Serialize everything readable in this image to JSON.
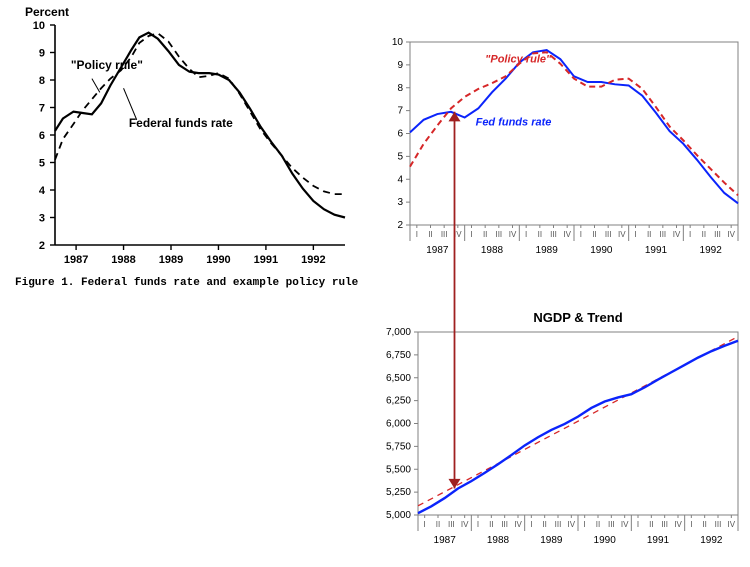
{
  "left_chart": {
    "type": "line",
    "title_top": "Percent",
    "caption": "Figure 1.  Federal funds rate and example policy rule.",
    "caption_fontweight": "bold",
    "caption_fontsize": 11,
    "title_fontsize": 12,
    "x_years": [
      "1987",
      "1988",
      "1989",
      "1990",
      "1991",
      "1992"
    ],
    "ylim": [
      2,
      10
    ],
    "ytick_step": 1,
    "axis_color": "#000000",
    "line_color": "#000000",
    "line_width": 2.2,
    "dash_width": 1.8,
    "background_color": "#ffffff",
    "label_fontsize": 11,
    "annot_policy": "\"Policy rule\"",
    "annot_fed": "Federal funds rate",
    "annot_fontsize": 12,
    "series": {
      "fed_funds": {
        "style": "solid",
        "xy": [
          [
            0.0,
            6.15
          ],
          [
            0.3,
            6.6
          ],
          [
            0.7,
            6.85
          ],
          [
            1.05,
            6.8
          ],
          [
            1.4,
            6.75
          ],
          [
            1.75,
            7.15
          ],
          [
            2.1,
            7.8
          ],
          [
            2.5,
            8.45
          ],
          [
            2.9,
            9.1
          ],
          [
            3.2,
            9.55
          ],
          [
            3.55,
            9.72
          ],
          [
            3.9,
            9.5
          ],
          [
            4.3,
            9.05
          ],
          [
            4.7,
            8.55
          ],
          [
            5.1,
            8.3
          ],
          [
            5.45,
            8.25
          ],
          [
            5.85,
            8.25
          ],
          [
            6.2,
            8.2
          ],
          [
            6.6,
            8.0
          ],
          [
            7.0,
            7.55
          ],
          [
            7.4,
            6.95
          ],
          [
            7.8,
            6.3
          ],
          [
            8.2,
            5.75
          ],
          [
            8.6,
            5.25
          ],
          [
            9.0,
            4.6
          ],
          [
            9.4,
            4.05
          ],
          [
            9.8,
            3.6
          ],
          [
            10.2,
            3.3
          ],
          [
            10.6,
            3.1
          ],
          [
            11.0,
            3.0
          ]
        ]
      },
      "policy_rule": {
        "style": "dashed",
        "xy": [
          [
            0.0,
            5.1
          ],
          [
            0.3,
            5.85
          ],
          [
            0.7,
            6.4
          ],
          [
            1.05,
            6.9
          ],
          [
            1.4,
            7.3
          ],
          [
            1.75,
            7.7
          ],
          [
            2.1,
            8.05
          ],
          [
            2.5,
            8.35
          ],
          [
            2.9,
            8.85
          ],
          [
            3.2,
            9.35
          ],
          [
            3.55,
            9.6
          ],
          [
            3.9,
            9.7
          ],
          [
            4.3,
            9.4
          ],
          [
            4.7,
            8.85
          ],
          [
            5.1,
            8.4
          ],
          [
            5.45,
            8.1
          ],
          [
            5.85,
            8.15
          ],
          [
            6.2,
            8.25
          ],
          [
            6.6,
            8.05
          ],
          [
            7.0,
            7.5
          ],
          [
            7.4,
            6.85
          ],
          [
            7.8,
            6.2
          ],
          [
            8.2,
            5.7
          ],
          [
            8.6,
            5.25
          ],
          [
            9.0,
            4.8
          ],
          [
            9.4,
            4.45
          ],
          [
            9.8,
            4.15
          ],
          [
            10.2,
            3.95
          ],
          [
            10.6,
            3.85
          ],
          [
            11.0,
            3.85
          ]
        ]
      }
    }
  },
  "right_top_chart": {
    "type": "line",
    "ylim": [
      2,
      10
    ],
    "ytick_step": 1,
    "x_years": [
      "1987",
      "1988",
      "1989",
      "1990",
      "1991",
      "1992"
    ],
    "x_quarter_labels": [
      "I",
      "II",
      "III",
      "IV"
    ],
    "border_color": "#808080",
    "grid_color": "#e0e0e0",
    "background_color": "#ffffff",
    "fed_color": "#0b24fb",
    "policy_color": "#d62728",
    "line_width": 2.0,
    "label_fontsize": 10,
    "annot_policy": "\"Policy rule\"",
    "annot_fed": "Fed funds rate",
    "annot_fontsize": 11,
    "annot_fontweight": "bold",
    "series": {
      "fed_funds": {
        "style": "solid",
        "color_key": "fed_color",
        "xy": [
          [
            0.0,
            6.05
          ],
          [
            1.0,
            6.6
          ],
          [
            2.0,
            6.85
          ],
          [
            3.0,
            6.95
          ],
          [
            4.0,
            6.7
          ],
          [
            5.0,
            7.1
          ],
          [
            6.0,
            7.8
          ],
          [
            7.0,
            8.4
          ],
          [
            8.0,
            9.1
          ],
          [
            9.0,
            9.55
          ],
          [
            10.0,
            9.65
          ],
          [
            11.0,
            9.25
          ],
          [
            12.0,
            8.5
          ],
          [
            13.0,
            8.25
          ],
          [
            14.0,
            8.25
          ],
          [
            15.0,
            8.15
          ],
          [
            16.0,
            8.1
          ],
          [
            17.0,
            7.65
          ],
          [
            18.0,
            6.9
          ],
          [
            19.0,
            6.1
          ],
          [
            20.0,
            5.55
          ],
          [
            21.0,
            4.85
          ],
          [
            22.0,
            4.1
          ],
          [
            23.0,
            3.4
          ],
          [
            24.0,
            2.95
          ]
        ]
      },
      "policy_rule": {
        "style": "dashed",
        "color_key": "policy_color",
        "xy": [
          [
            0.0,
            4.55
          ],
          [
            1.0,
            5.55
          ],
          [
            2.0,
            6.35
          ],
          [
            3.0,
            7.1
          ],
          [
            4.0,
            7.6
          ],
          [
            5.0,
            7.95
          ],
          [
            6.0,
            8.2
          ],
          [
            7.0,
            8.5
          ],
          [
            8.0,
            9.05
          ],
          [
            9.0,
            9.5
          ],
          [
            10.0,
            9.55
          ],
          [
            11.0,
            9.05
          ],
          [
            12.0,
            8.4
          ],
          [
            13.0,
            8.05
          ],
          [
            14.0,
            8.05
          ],
          [
            15.0,
            8.35
          ],
          [
            16.0,
            8.4
          ],
          [
            17.0,
            7.95
          ],
          [
            18.0,
            7.15
          ],
          [
            19.0,
            6.3
          ],
          [
            20.0,
            5.7
          ],
          [
            21.0,
            5.05
          ],
          [
            22.0,
            4.45
          ],
          [
            23.0,
            3.85
          ],
          [
            24.0,
            3.3
          ]
        ]
      }
    }
  },
  "right_bottom_chart": {
    "type": "line",
    "title": "NGDP & Trend",
    "title_fontsize": 13,
    "title_fontweight": "bold",
    "ylim": [
      5000,
      7000
    ],
    "ytick_step": 250,
    "x_years": [
      "1987",
      "1988",
      "1989",
      "1990",
      "1991",
      "1992"
    ],
    "x_quarter_labels": [
      "I",
      "II",
      "III",
      "IV"
    ],
    "border_color": "#808080",
    "grid_color": "#e0e0e0",
    "background_color": "#ffffff",
    "ngdp_color": "#0b24fb",
    "trend_color": "#d62728",
    "line_width_ngdp": 2.4,
    "line_width_trend": 1.3,
    "label_fontsize": 10,
    "series": {
      "ngdp": {
        "style": "solid",
        "color_key": "ngdp_color",
        "xy": [
          [
            0.0,
            5020
          ],
          [
            1.0,
            5095
          ],
          [
            2.0,
            5185
          ],
          [
            3.0,
            5290
          ],
          [
            4.0,
            5370
          ],
          [
            5.0,
            5460
          ],
          [
            6.0,
            5555
          ],
          [
            7.0,
            5655
          ],
          [
            8.0,
            5760
          ],
          [
            9.0,
            5850
          ],
          [
            10.0,
            5930
          ],
          [
            11.0,
            5995
          ],
          [
            12.0,
            6075
          ],
          [
            13.0,
            6170
          ],
          [
            14.0,
            6240
          ],
          [
            15.0,
            6285
          ],
          [
            16.0,
            6320
          ],
          [
            17.0,
            6395
          ],
          [
            18.0,
            6480
          ],
          [
            19.0,
            6560
          ],
          [
            20.0,
            6640
          ],
          [
            21.0,
            6720
          ],
          [
            22.0,
            6790
          ],
          [
            23.0,
            6850
          ],
          [
            24.0,
            6905
          ]
        ]
      },
      "trend": {
        "style": "dashed",
        "color_key": "trend_color",
        "xy": [
          [
            0.0,
            5100
          ],
          [
            24.0,
            6950
          ]
        ]
      }
    }
  },
  "connector_arrow": {
    "color": "#a02020",
    "width": 1.8,
    "arrow_size": 6,
    "top_point_quarter_x": 3.0,
    "top_point_y_value": 6.95,
    "bottom_point_quarter_x": 3.0,
    "bottom_point_y_value": 5290
  }
}
